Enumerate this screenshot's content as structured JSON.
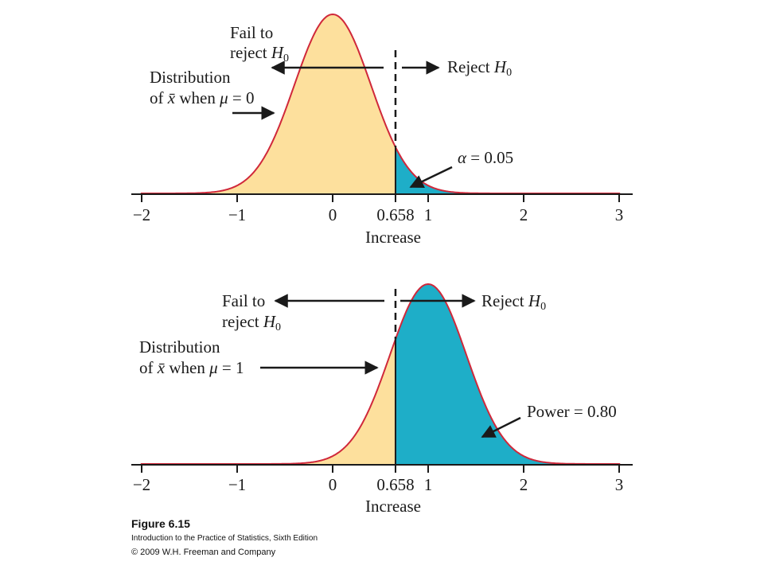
{
  "chart_data": [
    {
      "type": "area",
      "distribution": "normal",
      "mean": 0,
      "sd": 0.4,
      "critical_value": 0.658,
      "xlim": [
        -2,
        3
      ],
      "ticks": [
        "−2",
        "−1",
        "0",
        "0.658",
        "1",
        "2",
        "3"
      ],
      "tick_values": [
        -2,
        -1,
        0,
        0.658,
        1,
        2,
        3
      ],
      "xlabel": "Increase",
      "labels": {
        "fail_line1": "Fail to",
        "fail_line2_prefix": "reject ",
        "h": "H",
        "sub0": "0",
        "reject_prefix": "Reject ",
        "dist_line1": "Distribution",
        "dist_of": "of ",
        "xbar": "x̄",
        "dist_when": " when ",
        "mu": "μ",
        "dist_eq": " = 0",
        "alpha": "α",
        "alpha_eq": " = 0.05"
      },
      "shaded_region": {
        "from": 0.658,
        "label": "α = 0.05",
        "value": 0.05
      }
    },
    {
      "type": "area",
      "distribution": "normal",
      "mean": 1,
      "sd": 0.4,
      "critical_value": 0.658,
      "xlim": [
        -2,
        3
      ],
      "ticks": [
        "−2",
        "−1",
        "0",
        "0.658",
        "1",
        "2",
        "3"
      ],
      "tick_values": [
        -2,
        -1,
        0,
        0.658,
        1,
        2,
        3
      ],
      "xlabel": "Increase",
      "labels": {
        "fail_line1": "Fail to",
        "fail_line2_prefix": "reject ",
        "h": "H",
        "sub0": "0",
        "reject_prefix": "Reject ",
        "dist_line1": "Distribution",
        "dist_of": "of ",
        "xbar": "x̄",
        "dist_when": " when ",
        "mu": "μ",
        "dist_eq": " = 1",
        "power": "Power = 0.80"
      },
      "shaded_region": {
        "from": 0.658,
        "label": "Power = 0.80",
        "value": 0.8
      }
    }
  ],
  "colors": {
    "fill_accept": "#fde09d",
    "fill_reject": "#1eaec8",
    "curve": "#d0283a",
    "axis": "#1a1a1a"
  },
  "caption": {
    "title": "Figure 6.15",
    "book": "Introduction to the Practice of Statistics, Sixth Edition",
    "copyright": "© 2009 W.H. Freeman and Company"
  }
}
